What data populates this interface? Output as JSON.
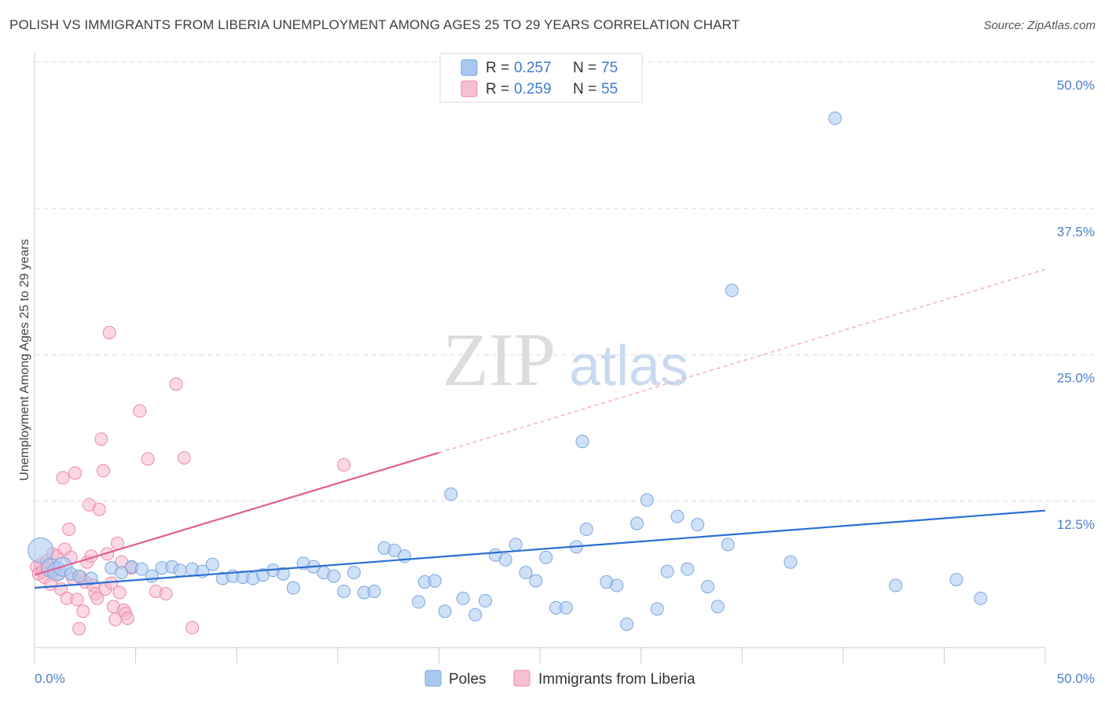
{
  "title": "POLISH VS IMMIGRANTS FROM LIBERIA UNEMPLOYMENT AMONG AGES 25 TO 29 YEARS CORRELATION CHART",
  "source": "Source: ZipAtlas.com",
  "watermark": {
    "zip": "ZIP",
    "atlas": "atlas"
  },
  "colors": {
    "poles_fill": "#a8c8f0",
    "poles_stroke": "#7aa6e0",
    "poles_line": "#2a6fd4",
    "liberia_fill": "#f7b8cc",
    "liberia_stroke": "#ee88a8",
    "liberia_line": "#e06090",
    "tick": "#4a7fcb",
    "grid": "#dddddd"
  },
  "legend": {
    "rows": [
      {
        "r_label": "R =",
        "r_value": "0.257",
        "n_label": "N =",
        "n_value": "75"
      },
      {
        "r_label": "R =",
        "r_value": "0.259",
        "n_label": "N =",
        "n_value": "55"
      }
    ]
  },
  "chart_data": {
    "type": "scatter",
    "title": "POLISH VS IMMIGRANTS FROM LIBERIA UNEMPLOYMENT AMONG AGES 25 TO 29 YEARS CORRELATION CHART",
    "xlabel": "",
    "ylabel": "Unemployment Among Ages 25 to 29 years",
    "xlim": [
      0,
      50
    ],
    "ylim": [
      0,
      50
    ],
    "x_tick_labels": [
      "0.0%",
      "50.0%"
    ],
    "y_ticks": [
      {
        "value": 12.5,
        "label": "12.5%"
      },
      {
        "value": 25.0,
        "label": "25.0%"
      },
      {
        "value": 37.5,
        "label": "37.5%"
      },
      {
        "value": 50.0,
        "label": "50.0%"
      }
    ],
    "series": [
      {
        "name": "Poles",
        "r": 0.257,
        "n": 75,
        "trend": {
          "x0": 0,
          "y0": 5.1,
          "x1": 50,
          "y1": 11.7,
          "solid_to": 50
        },
        "points": [
          [
            0.3,
            8.3
          ],
          [
            0.8,
            6.8
          ],
          [
            1.1,
            6.5
          ],
          [
            1.4,
            6.9
          ],
          [
            1.8,
            6.3
          ],
          [
            2.2,
            6.1
          ],
          [
            2.8,
            5.9
          ],
          [
            3.8,
            6.8
          ],
          [
            4.3,
            6.4
          ],
          [
            4.8,
            6.9
          ],
          [
            5.3,
            6.7
          ],
          [
            5.8,
            6.1
          ],
          [
            6.3,
            6.8
          ],
          [
            6.8,
            6.9
          ],
          [
            7.2,
            6.6
          ],
          [
            7.8,
            6.7
          ],
          [
            8.3,
            6.5
          ],
          [
            8.8,
            7.1
          ],
          [
            9.3,
            5.9
          ],
          [
            9.8,
            6.1
          ],
          [
            10.3,
            6.0
          ],
          [
            10.8,
            5.9
          ],
          [
            11.3,
            6.2
          ],
          [
            11.8,
            6.6
          ],
          [
            12.3,
            6.3
          ],
          [
            12.8,
            5.1
          ],
          [
            13.3,
            7.2
          ],
          [
            13.8,
            6.9
          ],
          [
            14.3,
            6.4
          ],
          [
            14.8,
            6.1
          ],
          [
            15.3,
            4.8
          ],
          [
            15.8,
            6.4
          ],
          [
            16.3,
            4.7
          ],
          [
            16.8,
            4.8
          ],
          [
            17.3,
            8.5
          ],
          [
            17.8,
            8.3
          ],
          [
            18.3,
            7.8
          ],
          [
            19.0,
            3.9
          ],
          [
            19.3,
            5.6
          ],
          [
            19.8,
            5.7
          ],
          [
            20.3,
            3.1
          ],
          [
            20.6,
            13.1
          ],
          [
            21.2,
            4.2
          ],
          [
            21.8,
            2.8
          ],
          [
            22.3,
            4.0
          ],
          [
            22.8,
            7.9
          ],
          [
            23.3,
            7.5
          ],
          [
            23.8,
            8.8
          ],
          [
            24.3,
            6.4
          ],
          [
            24.8,
            5.7
          ],
          [
            25.3,
            7.7
          ],
          [
            25.8,
            3.4
          ],
          [
            26.3,
            3.4
          ],
          [
            26.8,
            8.6
          ],
          [
            27.1,
            17.6
          ],
          [
            27.3,
            10.1
          ],
          [
            28.3,
            5.6
          ],
          [
            28.8,
            5.3
          ],
          [
            29.3,
            2.0
          ],
          [
            29.8,
            10.6
          ],
          [
            30.3,
            12.6
          ],
          [
            30.8,
            3.3
          ],
          [
            31.3,
            6.5
          ],
          [
            31.8,
            11.2
          ],
          [
            32.3,
            6.7
          ],
          [
            32.8,
            10.5
          ],
          [
            33.3,
            5.2
          ],
          [
            33.8,
            3.5
          ],
          [
            34.3,
            8.8
          ],
          [
            34.5,
            30.5
          ],
          [
            37.4,
            7.3
          ],
          [
            39.6,
            45.2
          ],
          [
            42.6,
            5.3
          ],
          [
            45.6,
            5.8
          ],
          [
            46.8,
            4.2
          ]
        ]
      },
      {
        "name": "Immigrants from Liberia",
        "r": 0.259,
        "n": 55,
        "trend": {
          "x0": 0,
          "y0": 6.2,
          "x1": 50,
          "y1": 32.3,
          "solid_to": 20
        },
        "points": [
          [
            0.1,
            6.9
          ],
          [
            0.2,
            6.3
          ],
          [
            0.3,
            7.1
          ],
          [
            0.4,
            6.5
          ],
          [
            0.5,
            6.0
          ],
          [
            0.6,
            7.4
          ],
          [
            0.7,
            6.7
          ],
          [
            0.8,
            5.4
          ],
          [
            0.9,
            8.0
          ],
          [
            1.0,
            6.6
          ],
          [
            1.1,
            7.8
          ],
          [
            1.2,
            6.3
          ],
          [
            1.3,
            5.0
          ],
          [
            1.4,
            14.5
          ],
          [
            1.5,
            8.4
          ],
          [
            1.6,
            4.2
          ],
          [
            1.7,
            10.1
          ],
          [
            1.8,
            7.7
          ],
          [
            1.9,
            5.9
          ],
          [
            2.0,
            14.9
          ],
          [
            2.1,
            4.1
          ],
          [
            2.2,
            1.6
          ],
          [
            2.3,
            6.0
          ],
          [
            2.4,
            3.1
          ],
          [
            2.5,
            5.6
          ],
          [
            2.6,
            7.3
          ],
          [
            2.7,
            12.2
          ],
          [
            2.8,
            7.8
          ],
          [
            2.9,
            5.3
          ],
          [
            3.0,
            4.6
          ],
          [
            3.1,
            4.2
          ],
          [
            3.2,
            11.8
          ],
          [
            3.3,
            17.8
          ],
          [
            3.4,
            15.1
          ],
          [
            3.5,
            5.0
          ],
          [
            3.6,
            8.0
          ],
          [
            3.7,
            26.9
          ],
          [
            3.8,
            5.5
          ],
          [
            3.9,
            3.5
          ],
          [
            4.0,
            2.4
          ],
          [
            4.1,
            8.9
          ],
          [
            4.2,
            4.7
          ],
          [
            4.3,
            7.3
          ],
          [
            4.4,
            3.2
          ],
          [
            4.5,
            2.9
          ],
          [
            4.6,
            2.5
          ],
          [
            4.8,
            6.8
          ],
          [
            5.2,
            20.2
          ],
          [
            5.6,
            16.1
          ],
          [
            6.0,
            4.8
          ],
          [
            6.5,
            4.6
          ],
          [
            7.0,
            22.5
          ],
          [
            7.8,
            1.7
          ],
          [
            7.4,
            16.2
          ],
          [
            15.3,
            15.6
          ]
        ]
      }
    ],
    "legend_items": [
      "Poles",
      "Immigrants from Liberia"
    ],
    "legend_position": "bottom-center"
  }
}
